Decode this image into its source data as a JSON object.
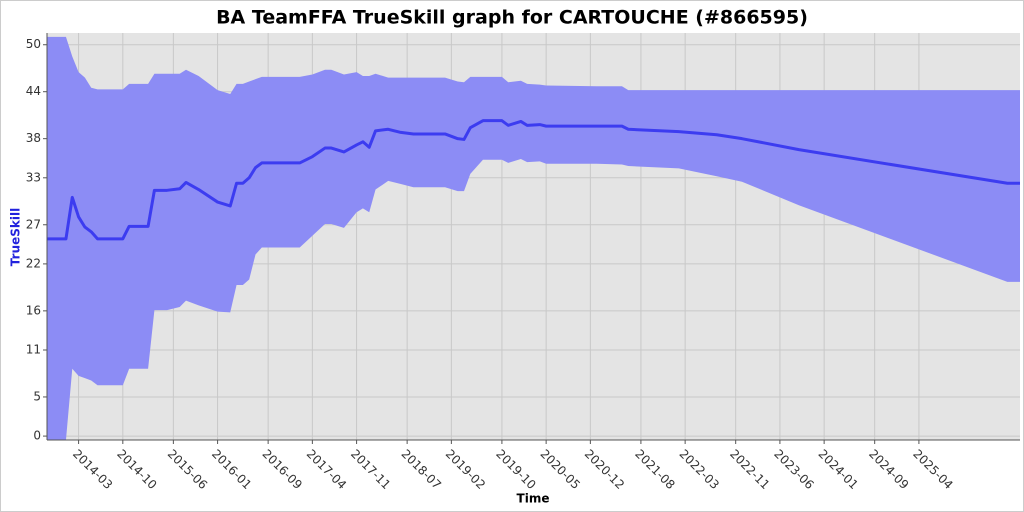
{
  "chart_data": {
    "type": "band-line",
    "title": "BA TeamFFA TrueSkill graph for CARTOUCHE (#866595)",
    "x_label": "Time",
    "y_label": "TrueSkill",
    "x": [
      "2013-10",
      "2014-01",
      "2014-02",
      "2014-03",
      "2014-04",
      "2014-05",
      "2014-06",
      "2014-10",
      "2014-11",
      "2015-02",
      "2015-03",
      "2015-05",
      "2015-07",
      "2015-08",
      "2015-10",
      "2016-01",
      "2016-03",
      "2016-04",
      "2016-05",
      "2016-06",
      "2016-07",
      "2016-08",
      "2017-02",
      "2017-04",
      "2017-06",
      "2017-07",
      "2017-09",
      "2017-11",
      "2017-12",
      "2018-01",
      "2018-02",
      "2018-04",
      "2018-06",
      "2018-08",
      "2019-01",
      "2019-03",
      "2019-04",
      "2019-05",
      "2019-07",
      "2019-10",
      "2019-11",
      "2020-01",
      "2020-02",
      "2020-04",
      "2020-05",
      "2021-01",
      "2021-05",
      "2021-06",
      "2022-02",
      "2022-08",
      "2022-12",
      "2023-09",
      "2026-06",
      "2026-08"
    ],
    "values": [
      25.2,
      25.2,
      30.5,
      28,
      26.7,
      26.1,
      25.2,
      25.2,
      26.8,
      26.8,
      31.4,
      31.4,
      31.6,
      32.4,
      31.5,
      29.9,
      29.4,
      32.3,
      32.3,
      33.0,
      34.3,
      34.9,
      34.9,
      35.7,
      36.8,
      36.8,
      36.3,
      37.2,
      37.6,
      36.9,
      39.0,
      39.2,
      38.8,
      38.6,
      38.6,
      38.0,
      37.9,
      39.4,
      40.3,
      40.3,
      39.7,
      40.2,
      39.7,
      39.8,
      39.6,
      39.6,
      39.6,
      39.2,
      38.9,
      38.5,
      38.0,
      36.6,
      32.3,
      32.3
    ],
    "upper": [
      51.0,
      51.0,
      48.5,
      46.5,
      45.8,
      44.5,
      44.3,
      44.3,
      45.0,
      45.0,
      46.3,
      46.3,
      46.3,
      46.8,
      46.0,
      44.2,
      43.7,
      45.0,
      45.0,
      45.3,
      45.6,
      45.9,
      45.9,
      46.2,
      46.8,
      46.8,
      46.2,
      46.5,
      46.0,
      46.0,
      46.3,
      45.8,
      45.8,
      45.8,
      45.8,
      45.3,
      45.2,
      45.9,
      45.9,
      45.9,
      45.2,
      45.4,
      45.0,
      44.9,
      44.8,
      44.7,
      44.7,
      44.2,
      44.2,
      44.2,
      44.2,
      44.2,
      44.2,
      44.2
    ],
    "lower": [
      -0.5,
      -0.5,
      8.6,
      7.7,
      7.4,
      7.1,
      6.5,
      6.5,
      8.6,
      8.6,
      16.1,
      16.1,
      16.5,
      17.3,
      16.7,
      15.9,
      15.8,
      19.3,
      19.3,
      20.0,
      23.2,
      24.1,
      24.1,
      25.6,
      27.1,
      27.1,
      26.6,
      28.6,
      29.1,
      28.6,
      31.5,
      32.6,
      32.2,
      31.8,
      31.8,
      31.3,
      31.3,
      33.5,
      35.3,
      35.3,
      34.9,
      35.4,
      35.0,
      35.1,
      34.8,
      34.8,
      34.7,
      34.5,
      34.2,
      33.2,
      32.5,
      29.5,
      19.7,
      19.7
    ],
    "line_color": "#3c3cf0",
    "band_color": "#8c8cf5",
    "xlim": [
      "2013-10",
      "2026-08"
    ],
    "xticks": [
      "2014-03",
      "2014-10",
      "2015-06",
      "2016-01",
      "2016-09",
      "2017-04",
      "2017-11",
      "2018-07",
      "2019-02",
      "2019-10",
      "2020-05",
      "2020-12",
      "2021-08",
      "2022-03",
      "2022-11",
      "2023-06",
      "2024-01",
      "2024-09",
      "2025-04"
    ],
    "ylim": [
      -0.5,
      51.5
    ],
    "yticks": [
      0,
      5,
      11,
      16,
      22,
      27,
      33,
      38,
      44,
      50
    ],
    "grid": true
  }
}
